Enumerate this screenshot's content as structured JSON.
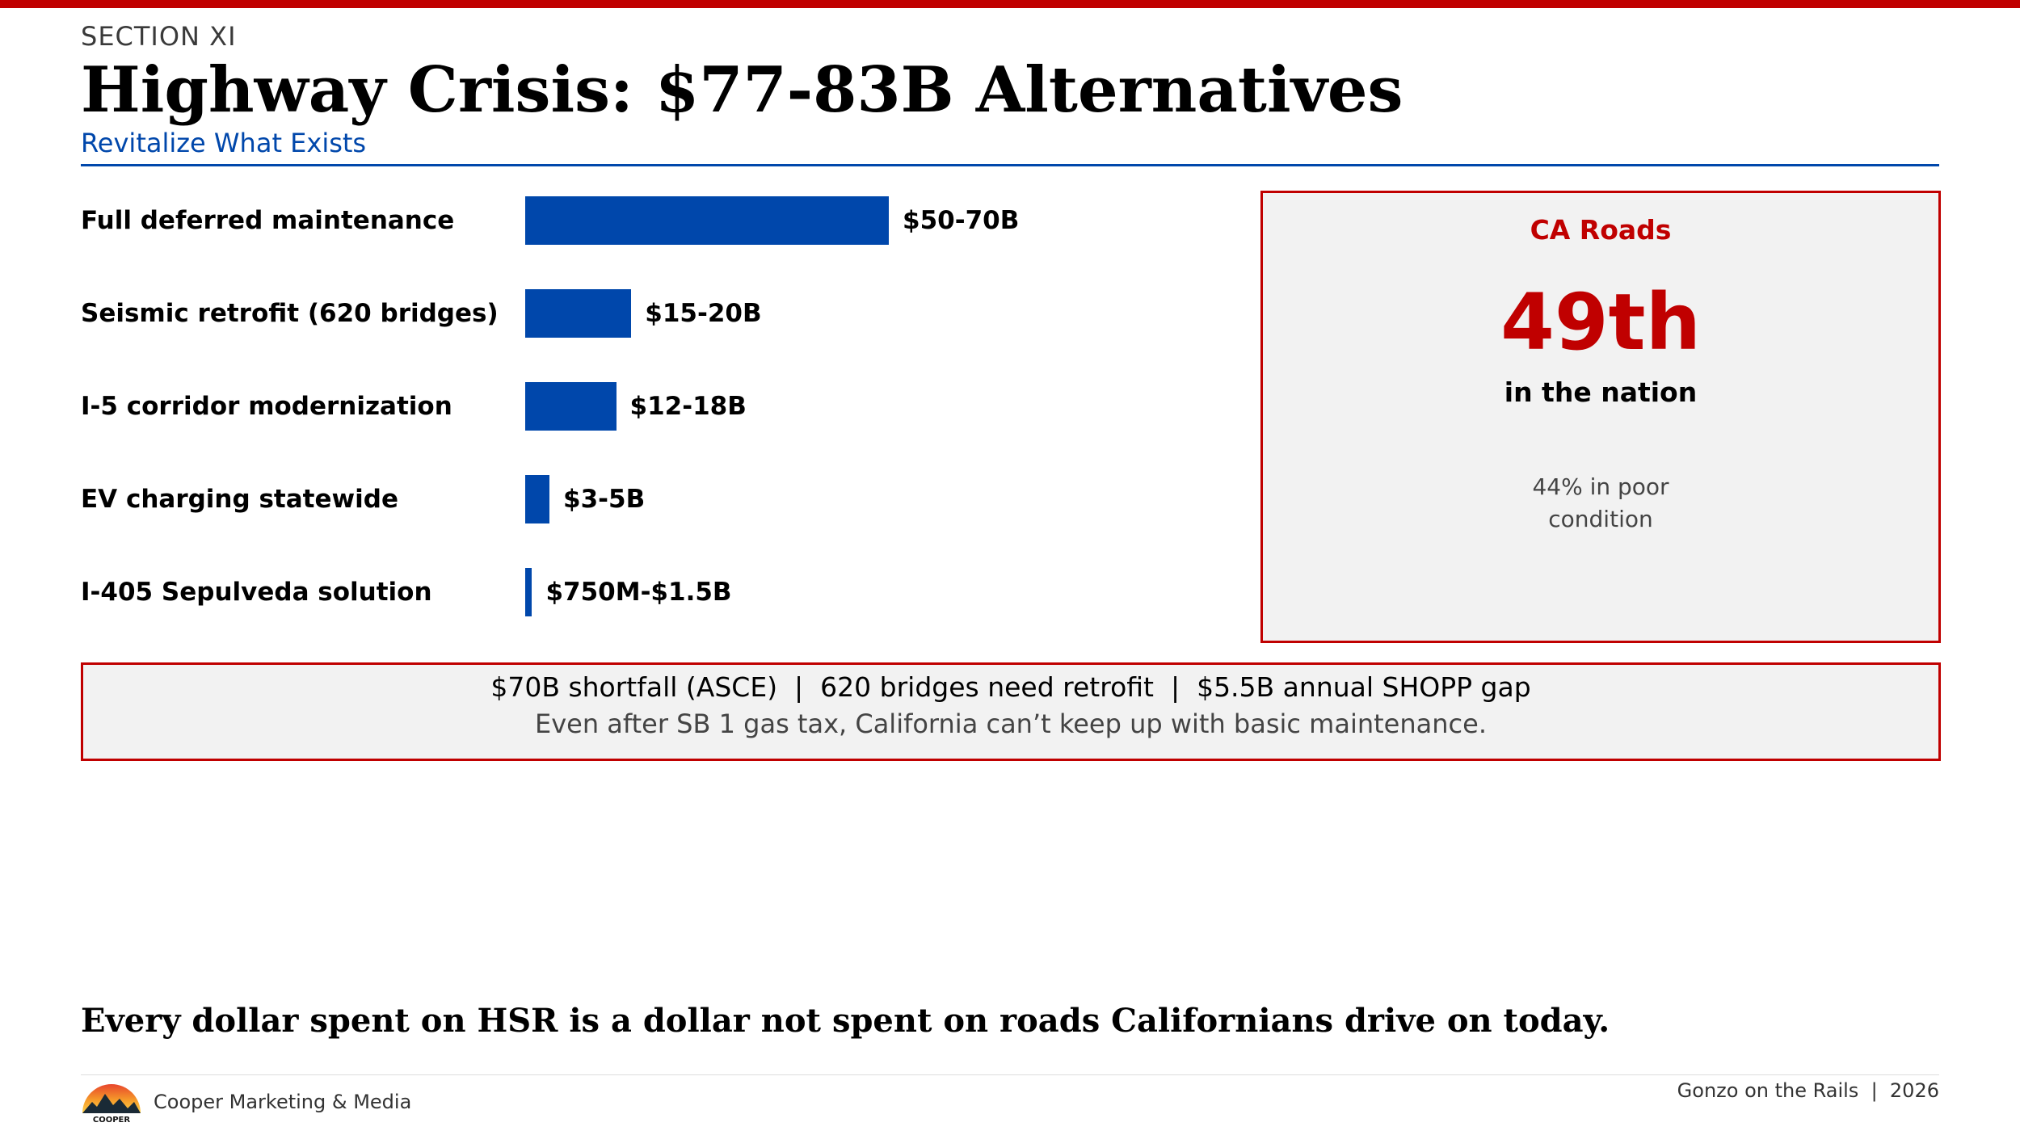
{
  "header": {
    "section": "SECTION XI",
    "title": "Highway Crisis: $77-83B Alternatives",
    "subtitle": "Revitalize What Exists"
  },
  "chart_data": {
    "type": "bar",
    "orientation": "horizontal",
    "categories": [
      "Full deferred maintenance",
      "Seismic retrofit (620 bridges)",
      "I-5 corridor modernization",
      "EV charging statewide",
      "I-405 Sepulveda solution"
    ],
    "ranges_billions": [
      [
        50,
        70
      ],
      [
        15,
        20
      ],
      [
        12,
        18
      ],
      [
        3,
        5
      ],
      [
        0.75,
        1.5
      ]
    ],
    "values": [
      60,
      17.5,
      15,
      4,
      1.125
    ],
    "value_labels": [
      "$50-70B",
      "$15-20B",
      "$12-18B",
      "$3-5B",
      "$750M-$1.5B"
    ],
    "unit": "USD billions (range midpoint)",
    "xlim": [
      0,
      60
    ],
    "bar_color": "#0047ab",
    "title": "",
    "xlabel": "",
    "ylabel": ""
  },
  "stat_card": {
    "heading": "CA Roads",
    "value": "49th",
    "description": "in the nation",
    "note": "44% in poor condition"
  },
  "callout": {
    "line1": "$70B shortfall (ASCE)  |  620 bridges need retrofit  |  $5.5B annual SHOPP gap",
    "line2": "Even after SB 1 gas tax, California can’t keep up with basic maintenance."
  },
  "tagline": "Every dollar spent on HSR is a dollar not spent on roads Californians drive on today.",
  "footer": {
    "logo_text": "COOPER",
    "company": "Cooper Marketing & Media",
    "right": "Gonzo on the Rails  |  2026"
  },
  "colors": {
    "accent_red": "#c00000",
    "accent_blue": "#0047ab",
    "panel_bg": "#f2f2f2"
  }
}
